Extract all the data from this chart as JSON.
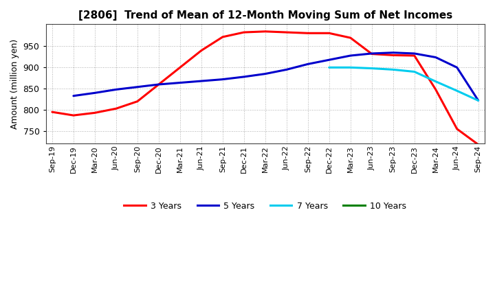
{
  "title": "[2806]  Trend of Mean of 12-Month Moving Sum of Net Incomes",
  "ylabel": "Amount (million yen)",
  "background_color": "#ffffff",
  "plot_bg_color": "#ffffff",
  "grid_color": "#999999",
  "x_labels": [
    "Sep-19",
    "Dec-19",
    "Mar-20",
    "Jun-20",
    "Sep-20",
    "Dec-20",
    "Mar-21",
    "Jun-21",
    "Sep-21",
    "Dec-21",
    "Mar-22",
    "Jun-22",
    "Sep-22",
    "Dec-22",
    "Mar-23",
    "Jun-23",
    "Sep-23",
    "Dec-23",
    "Mar-24",
    "Jun-24",
    "Sep-24"
  ],
  "series": {
    "3 Years": {
      "color": "#ff0000",
      "values": [
        795,
        787,
        793,
        803,
        820,
        860,
        900,
        940,
        972,
        983,
        985,
        983,
        981,
        981,
        970,
        932,
        929,
        928,
        848,
        755,
        718
      ]
    },
    "5 Years": {
      "color": "#0000cc",
      "values": [
        null,
        833,
        840,
        848,
        854,
        860,
        864,
        868,
        872,
        878,
        885,
        895,
        908,
        918,
        928,
        933,
        935,
        933,
        924,
        900,
        822
      ]
    },
    "7 Years": {
      "color": "#00ccee",
      "values": [
        null,
        null,
        null,
        null,
        null,
        null,
        null,
        null,
        null,
        null,
        null,
        null,
        null,
        900,
        900,
        898,
        895,
        890,
        867,
        845,
        822
      ]
    },
    "10 Years": {
      "color": "#008000",
      "values": [
        null,
        null,
        null,
        null,
        null,
        null,
        null,
        null,
        null,
        null,
        null,
        null,
        null,
        null,
        null,
        null,
        null,
        null,
        null,
        null,
        null
      ]
    }
  },
  "ylim": [
    720,
    1002
  ],
  "yticks": [
    750,
    800,
    850,
    900,
    950
  ],
  "legend_labels": [
    "3 Years",
    "5 Years",
    "7 Years",
    "10 Years"
  ],
  "legend_colors": [
    "#ff0000",
    "#0000cc",
    "#00ccee",
    "#008000"
  ]
}
